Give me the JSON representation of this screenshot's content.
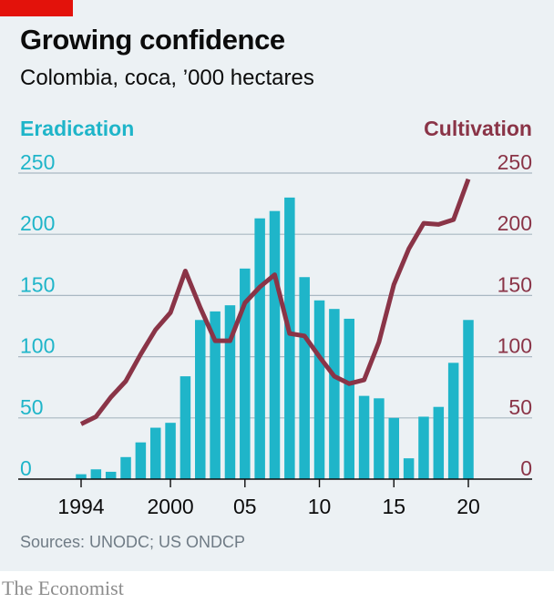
{
  "header": {
    "title": "Growing confidence",
    "subtitle": "Colombia, coca, ’000 hectares"
  },
  "footer": {
    "source": "Sources: UNODC; US ONDCP",
    "brand": "The Economist"
  },
  "colors": {
    "eradication": "#1fb5c9",
    "cultivation": "#8a3447",
    "grid": "#a9b8c2",
    "axis": "#0c0c0c",
    "brand_red": "#e3120b"
  },
  "chart_data": {
    "type": "bar",
    "title": "Growing confidence",
    "subtitle": "Colombia, coca, ’000 hectares",
    "y_left_label": "Eradication",
    "y_right_label": "Cultivation",
    "ylim": [
      0,
      250
    ],
    "yticks": [
      0,
      50,
      100,
      150,
      200,
      250
    ],
    "xlim": [
      1993.5,
      2021.5
    ],
    "xticks": [
      {
        "value": 1994,
        "label": "1994"
      },
      {
        "value": 2000,
        "label": "2000"
      },
      {
        "value": 2005,
        "label": "05"
      },
      {
        "value": 2010,
        "label": "10"
      },
      {
        "value": 2015,
        "label": "15"
      },
      {
        "value": 2020,
        "label": "20"
      }
    ],
    "grid": true,
    "series": [
      {
        "name": "Eradication",
        "type": "bar",
        "axis": "left",
        "x": [
          1994,
          1995,
          1996,
          1997,
          1998,
          1999,
          2000,
          2001,
          2002,
          2003,
          2004,
          2005,
          2006,
          2007,
          2008,
          2009,
          2010,
          2011,
          2012,
          2013,
          2014,
          2015,
          2016,
          2017,
          2018,
          2019,
          2020
        ],
        "values": [
          4,
          8,
          6,
          18,
          30,
          42,
          46,
          84,
          130,
          137,
          142,
          172,
          213,
          219,
          230,
          165,
          146,
          139,
          131,
          68,
          66,
          50,
          17,
          51,
          59,
          95,
          130
        ]
      },
      {
        "name": "Cultivation",
        "type": "line",
        "axis": "right",
        "x": [
          1994,
          1995,
          1996,
          1997,
          1998,
          1999,
          2000,
          2001,
          2002,
          2003,
          2004,
          2005,
          2006,
          2007,
          2008,
          2009,
          2010,
          2011,
          2012,
          2013,
          2014,
          2015,
          2016,
          2017,
          2018,
          2019,
          2020
        ],
        "values": [
          45,
          51,
          67,
          80,
          102,
          122,
          136,
          170,
          140,
          113,
          113,
          144,
          157,
          167,
          119,
          117,
          100,
          84,
          78,
          81,
          112,
          159,
          188,
          209,
          208,
          212,
          245
        ]
      }
    ]
  }
}
